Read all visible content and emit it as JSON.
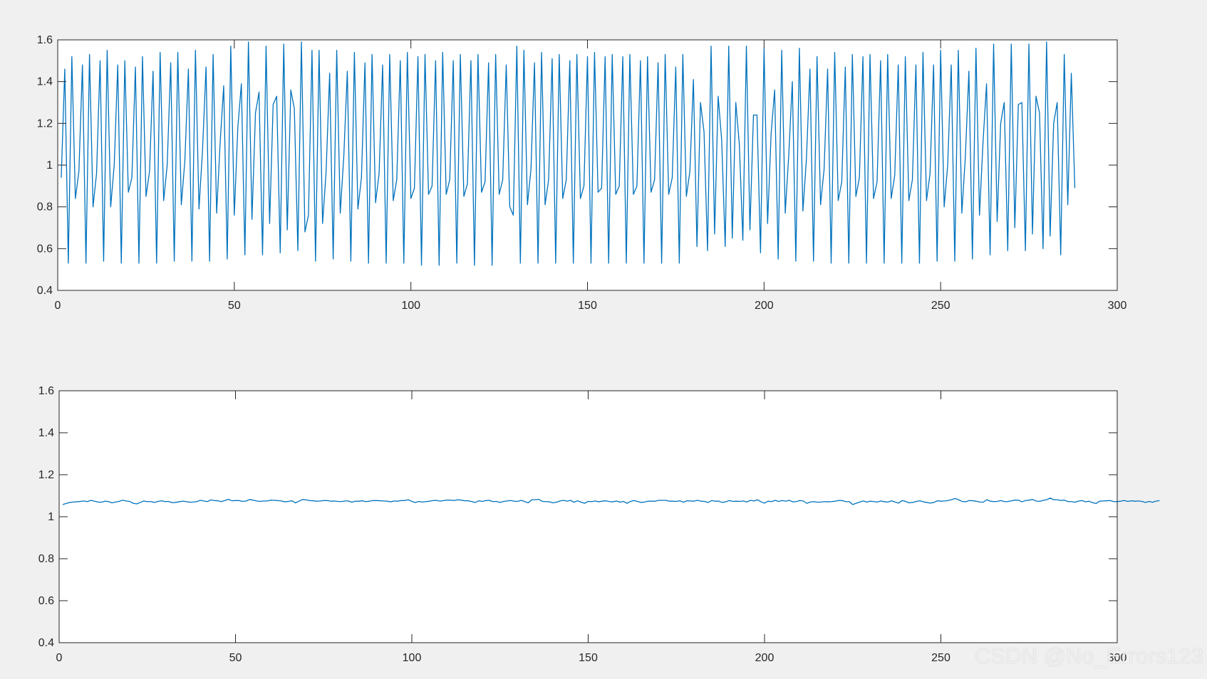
{
  "figure": {
    "background": "#f0f0f0",
    "axes_background": "#ffffff",
    "axes_color": "#262626",
    "line_color": "#0072bd"
  },
  "watermark": "CSDN @No_Errors123",
  "chart_data": [
    {
      "type": "line",
      "title": "",
      "xlabel": "",
      "ylabel": "",
      "xlim": [
        0,
        300
      ],
      "ylim": [
        0.4,
        1.6
      ],
      "xticks": [
        0,
        50,
        100,
        150,
        200,
        250,
        300
      ],
      "xtick_labels": [
        "0",
        "50",
        "100",
        "150",
        "200",
        "250",
        "300"
      ],
      "yticks": [
        0.4,
        0.6,
        0.8,
        1.0,
        1.2,
        1.4,
        1.6
      ],
      "ytick_labels": [
        "0.4",
        "0.6",
        "0.8",
        "1",
        "1.2",
        "1.4",
        "1.6"
      ],
      "grid": false,
      "series": [
        {
          "x_start": 1,
          "x_step": 1,
          "values": [
            0.94,
            1.46,
            0.53,
            1.52,
            0.84,
            0.97,
            1.48,
            0.53,
            1.53,
            0.8,
            0.96,
            1.5,
            0.54,
            1.55,
            0.8,
            1.0,
            1.48,
            0.53,
            1.5,
            0.87,
            0.94,
            1.47,
            0.53,
            1.52,
            0.85,
            0.97,
            1.45,
            0.53,
            1.54,
            0.83,
            1.0,
            1.49,
            0.54,
            1.54,
            0.81,
            1.02,
            1.46,
            0.54,
            1.55,
            0.79,
            1.07,
            1.47,
            0.54,
            1.53,
            0.77,
            1.11,
            1.38,
            0.55,
            1.57,
            0.76,
            1.18,
            1.39,
            0.57,
            1.59,
            0.74,
            1.25,
            1.35,
            0.57,
            1.57,
            0.72,
            1.29,
            1.33,
            0.58,
            1.58,
            0.69,
            1.36,
            1.27,
            0.59,
            1.59,
            0.68,
            0.76,
            1.55,
            0.54,
            1.55,
            0.72,
            0.97,
            1.44,
            0.55,
            1.55,
            0.77,
            1.04,
            1.45,
            0.54,
            1.54,
            0.79,
            0.94,
            1.49,
            0.53,
            1.53,
            0.82,
            0.96,
            1.48,
            0.53,
            1.53,
            0.83,
            0.93,
            1.5,
            0.53,
            1.54,
            0.84,
            0.89,
            1.52,
            0.52,
            1.53,
            0.86,
            0.9,
            1.5,
            0.52,
            1.54,
            0.86,
            0.93,
            1.5,
            0.53,
            1.53,
            0.85,
            0.91,
            1.5,
            0.52,
            1.53,
            0.87,
            0.92,
            1.49,
            0.52,
            1.53,
            0.86,
            0.93,
            1.48,
            0.8,
            0.76,
            1.57,
            0.53,
            1.55,
            0.81,
            0.98,
            1.49,
            0.53,
            1.54,
            0.81,
            0.93,
            1.51,
            0.53,
            1.53,
            0.84,
            0.93,
            1.5,
            0.53,
            1.53,
            0.84,
            0.9,
            1.52,
            0.53,
            1.54,
            0.87,
            0.89,
            1.52,
            0.53,
            1.53,
            0.86,
            0.9,
            1.52,
            0.53,
            1.53,
            0.86,
            0.9,
            1.5,
            0.53,
            1.52,
            0.87,
            0.93,
            1.49,
            0.53,
            1.53,
            0.86,
            0.94,
            1.47,
            0.53,
            1.53,
            0.85,
            0.97,
            1.41,
            0.61,
            1.3,
            1.16,
            0.59,
            1.57,
            0.67,
            1.33,
            1.12,
            0.61,
            1.57,
            0.65,
            1.3,
            1.1,
            0.64,
            1.57,
            0.69,
            1.24,
            1.24,
            0.58,
            1.56,
            0.72,
            1.15,
            1.36,
            0.55,
            1.55,
            0.77,
            1.05,
            1.4,
            0.54,
            1.56,
            0.78,
            1.03,
            1.46,
            0.54,
            1.52,
            0.81,
            0.98,
            1.46,
            0.53,
            1.54,
            0.83,
            0.92,
            1.47,
            0.53,
            1.53,
            0.85,
            0.94,
            1.52,
            0.53,
            1.53,
            0.84,
            0.92,
            1.5,
            0.53,
            1.53,
            0.84,
            0.95,
            1.48,
            0.53,
            1.52,
            0.83,
            0.93,
            1.48,
            0.53,
            1.54,
            0.83,
            0.96,
            1.48,
            0.54,
            1.55,
            0.8,
            1.0,
            1.48,
            0.54,
            1.55,
            0.77,
            1.04,
            1.45,
            0.55,
            1.56,
            0.76,
            1.11,
            1.39,
            0.57,
            1.58,
            0.73,
            1.2,
            1.3,
            0.59,
            1.58,
            0.7,
            1.29,
            1.3,
            0.59,
            1.58,
            0.67,
            1.33,
            1.25,
            0.6,
            1.59,
            0.66,
            1.2,
            1.3,
            0.57,
            1.53,
            0.81,
            1.44,
            0.89
          ]
        }
      ]
    },
    {
      "type": "line",
      "title": "",
      "xlabel": "",
      "ylabel": "",
      "xlim": [
        0,
        300
      ],
      "ylim": [
        0.4,
        1.6
      ],
      "xticks": [
        0,
        50,
        100,
        150,
        200,
        250,
        300
      ],
      "xtick_labels": [
        "0",
        "50",
        "100",
        "150",
        "200",
        "250",
        "300"
      ],
      "yticks": [
        0.4,
        0.6,
        0.8,
        1.0,
        1.2,
        1.4,
        1.6
      ],
      "ytick_labels": [
        "0.4",
        "0.6",
        "0.8",
        "1",
        "1.2",
        "1.4",
        "1.6"
      ],
      "grid": false,
      "series": [
        {
          "x_start": 1,
          "x_step": 1,
          "values": [
            1.058,
            1.063,
            1.068,
            1.07,
            1.071,
            1.073,
            1.075,
            1.072,
            1.078,
            1.074,
            1.07,
            1.069,
            1.074,
            1.072,
            1.066,
            1.07,
            1.073,
            1.079,
            1.075,
            1.073,
            1.064,
            1.061,
            1.068,
            1.075,
            1.072,
            1.072,
            1.068,
            1.073,
            1.076,
            1.072,
            1.073,
            1.067,
            1.068,
            1.071,
            1.074,
            1.072,
            1.069,
            1.07,
            1.072,
            1.078,
            1.075,
            1.072,
            1.08,
            1.077,
            1.076,
            1.072,
            1.077,
            1.083,
            1.076,
            1.077,
            1.077,
            1.073,
            1.075,
            1.082,
            1.079,
            1.075,
            1.073,
            1.075,
            1.075,
            1.079,
            1.078,
            1.077,
            1.075,
            1.071,
            1.073,
            1.076,
            1.066,
            1.074,
            1.082,
            1.08,
            1.077,
            1.076,
            1.074,
            1.075,
            1.077,
            1.077,
            1.074,
            1.075,
            1.073,
            1.072,
            1.075,
            1.075,
            1.069,
            1.074,
            1.074,
            1.076,
            1.072,
            1.074,
            1.077,
            1.077,
            1.076,
            1.075,
            1.074,
            1.071,
            1.075,
            1.074,
            1.077,
            1.077,
            1.081,
            1.073,
            1.068,
            1.073,
            1.07,
            1.072,
            1.074,
            1.077,
            1.078,
            1.074,
            1.077,
            1.079,
            1.079,
            1.077,
            1.081,
            1.079,
            1.076,
            1.076,
            1.072,
            1.068,
            1.076,
            1.073,
            1.077,
            1.078,
            1.072,
            1.073,
            1.068,
            1.073,
            1.075,
            1.077,
            1.074,
            1.073,
            1.078,
            1.072,
            1.066,
            1.081,
            1.081,
            1.083,
            1.073,
            1.072,
            1.071,
            1.066,
            1.069,
            1.075,
            1.078,
            1.074,
            1.078,
            1.069,
            1.076,
            1.069,
            1.064,
            1.073,
            1.072,
            1.075,
            1.071,
            1.074,
            1.076,
            1.072,
            1.071,
            1.075,
            1.069,
            1.073,
            1.064,
            1.073,
            1.077,
            1.073,
            1.068,
            1.07,
            1.074,
            1.074,
            1.074,
            1.078,
            1.078,
            1.078,
            1.074,
            1.074,
            1.073,
            1.076,
            1.069,
            1.076,
            1.075,
            1.074,
            1.078,
            1.074,
            1.073,
            1.068,
            1.077,
            1.074,
            1.074,
            1.068,
            1.071,
            1.077,
            1.073,
            1.074,
            1.073,
            1.075,
            1.07,
            1.078,
            1.075,
            1.081,
            1.071,
            1.065,
            1.074,
            1.072,
            1.078,
            1.073,
            1.077,
            1.074,
            1.078,
            1.071,
            1.072,
            1.077,
            1.075,
            1.064,
            1.07,
            1.072,
            1.069,
            1.07,
            1.072,
            1.071,
            1.072,
            1.074,
            1.077,
            1.077,
            1.072,
            1.072,
            1.058,
            1.064,
            1.07,
            1.075,
            1.07,
            1.074,
            1.072,
            1.07,
            1.075,
            1.071,
            1.07,
            1.076,
            1.07,
            1.065,
            1.077,
            1.073,
            1.066,
            1.068,
            1.073,
            1.076,
            1.071,
            1.068,
            1.065,
            1.068,
            1.076,
            1.074,
            1.075,
            1.077,
            1.081,
            1.087,
            1.081,
            1.073,
            1.071,
            1.077,
            1.076,
            1.074,
            1.07,
            1.069,
            1.081,
            1.074,
            1.072,
            1.073,
            1.077,
            1.072,
            1.072,
            1.076,
            1.079,
            1.079,
            1.071,
            1.077,
            1.079,
            1.082,
            1.075,
            1.073,
            1.078,
            1.081,
            1.089,
            1.081,
            1.081,
            1.077,
            1.079,
            1.072,
            1.072,
            1.069,
            1.074,
            1.077,
            1.071,
            1.074,
            1.067,
            1.063,
            1.074,
            1.075,
            1.076,
            1.077,
            1.072,
            1.072,
            1.074,
            1.077,
            1.073,
            1.076,
            1.074,
            1.075,
            1.073,
            1.068,
            1.073,
            1.069,
            1.074,
            1.077
          ]
        }
      ]
    }
  ]
}
